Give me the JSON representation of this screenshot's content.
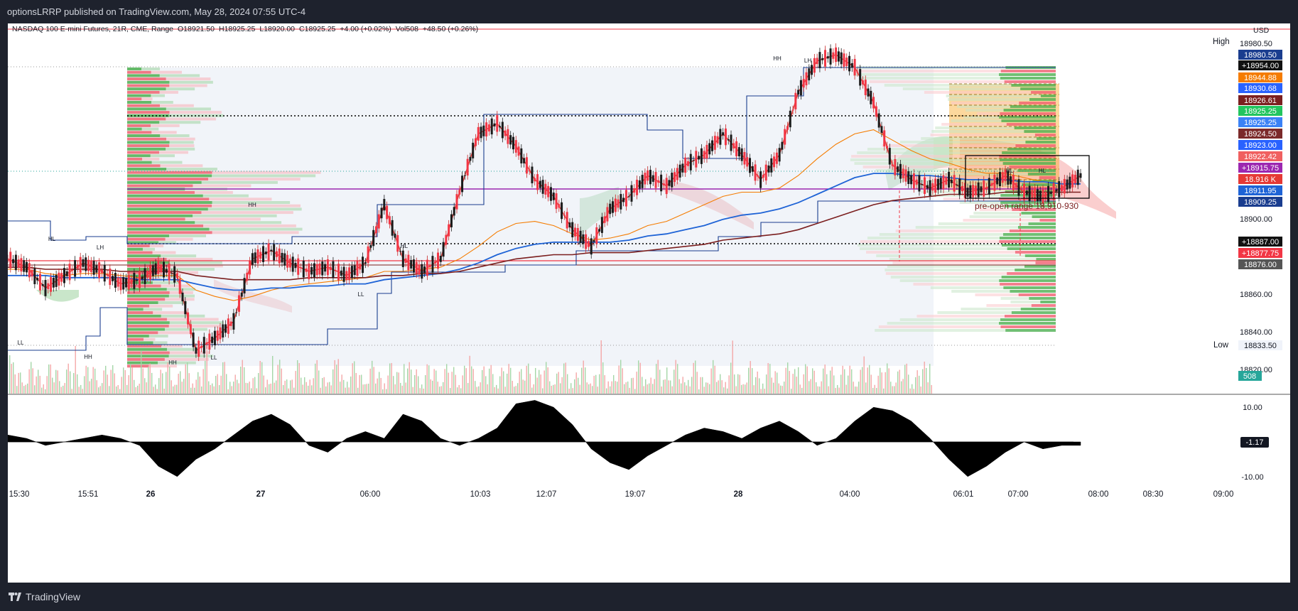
{
  "header": {
    "publish_line": "optionsLRRP published on TradingView.com, May 28, 2024 07:55 UTC-4"
  },
  "footer": {
    "brand": "TradingView"
  },
  "colors": {
    "bull": "#26a69a",
    "bear": "#f23645",
    "candle_bull": "#1b1b1b",
    "candle_bear": "#f23645",
    "vwap_red": "#e53935",
    "ema_blue": "#1e63d6",
    "ema_maroon": "#7b1f1f",
    "orange": "#f57c00",
    "range_box": "#000000"
  },
  "chart_data": [
    {
      "type": "line",
      "symbol": "NASDAQ 100 E-mini Futures, 21R, CME, Range",
      "ohlc": {
        "open": "O18921.50",
        "high": "H18925.25",
        "low": "L18920.00",
        "close": "C18925.25",
        "change": "+4.00 (+0.02%)"
      },
      "volume": {
        "label": "Vol508",
        "change": "+48.50 (+0.26%)"
      },
      "currency": "USD",
      "y_axis_ticks": [
        "18980.50",
        "18900.00",
        "18860.00",
        "18840.00",
        "18820.00"
      ],
      "ylim": [
        18815,
        18993
      ],
      "x_axis_ticks": [
        "15:30",
        "15:51",
        "26",
        "27",
        "06:00",
        "10:03",
        "12:07",
        "19:07",
        "28",
        "04:00",
        "06:01",
        "07:00",
        "08:00",
        "08:30",
        "09:00"
      ],
      "session_high": {
        "label": "High",
        "value": "18980.50"
      },
      "session_low": {
        "label": "Low",
        "value": "18833.50"
      },
      "price_labels": [
        {
          "value": "18980.50",
          "color": "#1a3d8f"
        },
        {
          "value": "+18954.00",
          "color": "#111111"
        },
        {
          "value": "18944.88",
          "color": "#f57c00"
        },
        {
          "value": "18930.68",
          "color": "#2962ff"
        },
        {
          "value": "18926.61",
          "color": "#7b1f1f"
        },
        {
          "value": "18925.25",
          "color": "#22c55e"
        },
        {
          "value": "18925.25",
          "color": "#3b82f6"
        },
        {
          "value": "18924.50",
          "color": "#7b2a2a"
        },
        {
          "value": "18923.00",
          "color": "#2962ff"
        },
        {
          "value": "18922.42",
          "color": "#f06060"
        },
        {
          "value": "+18915.75",
          "color": "#9c27b0"
        },
        {
          "value": "18.916 K",
          "color": "#e53935"
        },
        {
          "value": "18911.95",
          "color": "#1e63d6"
        },
        {
          "value": "18909.25",
          "color": "#1a3d8f"
        },
        {
          "value": "+18887.00",
          "color": "#111111"
        },
        {
          "value": "+18877.75",
          "color": "#f23645"
        },
        {
          "value": "18876.00",
          "color": "#555555"
        },
        {
          "value": "508",
          "color": "#26a69a"
        }
      ],
      "annotations": [
        "pre-open range 18,910-930",
        "HH",
        "LH",
        "HL",
        "LL"
      ],
      "series": [
        {
          "values": [
            18880,
            18876,
            18866,
            18872,
            18878,
            18874,
            18868,
            18870,
            18876,
            18872,
            18836,
            18842,
            18850,
            18880,
            18884,
            18878,
            18874,
            18876,
            18872,
            18878,
            18906,
            18880,
            18874,
            18880,
            18912,
            18940,
            18945,
            18934,
            18918,
            18910,
            18894,
            18886,
            18904,
            18910,
            18920,
            18915,
            18925,
            18930,
            18940,
            18930,
            18918,
            18930,
            18960,
            18975,
            18978,
            18972,
            18955,
            18925,
            18918,
            18914,
            18918,
            18912,
            18914,
            18920,
            18912,
            18910,
            18914,
            18920
          ]
        },
        {
          "values": [
            18875,
            18875,
            18873,
            18872,
            18873,
            18873,
            18872,
            18871,
            18872,
            18872,
            18865,
            18862,
            18860,
            18862,
            18865,
            18867,
            18868,
            18869,
            18870,
            18871,
            18874,
            18874,
            18875,
            18876,
            18880,
            18886,
            18893,
            18897,
            18898,
            18896,
            18892,
            18889,
            18890,
            18892,
            18896,
            18898,
            18902,
            18906,
            18910,
            18912,
            18912,
            18914,
            18920,
            18928,
            18935,
            18940,
            18942,
            18937,
            18932,
            18928,
            18926,
            18923,
            18921,
            18921,
            18919,
            18917,
            18916,
            18916
          ]
        },
        {
          "values": [
            18872,
            18872,
            18872,
            18871,
            18871,
            18871,
            18871,
            18870,
            18870,
            18870,
            18868,
            18866,
            18865,
            18865,
            18866,
            18866,
            18867,
            18867,
            18868,
            18868,
            18870,
            18871,
            18872,
            18873,
            18875,
            18878,
            18882,
            18885,
            18887,
            18888,
            18888,
            18888,
            18888,
            18889,
            18891,
            18892,
            18894,
            18896,
            18899,
            18901,
            18902,
            18904,
            18907,
            18911,
            18915,
            18919,
            18921,
            18921,
            18920,
            18920,
            18919,
            18918,
            18918,
            18918,
            18917,
            18917,
            18916,
            18916
          ]
        },
        {
          "values": [
            18876,
            18876,
            18875,
            18875,
            18875,
            18875,
            18874,
            18874,
            18874,
            18874,
            18872,
            18871,
            18870,
            18870,
            18870,
            18870,
            18871,
            18871,
            18871,
            18871,
            18872,
            18872,
            18873,
            18873,
            18874,
            18876,
            18878,
            18880,
            18881,
            18882,
            18882,
            18883,
            18883,
            18883,
            18884,
            18885,
            18886,
            18887,
            18889,
            18890,
            18891,
            18892,
            18894,
            18897,
            18900,
            18903,
            18906,
            18908,
            18909,
            18910,
            18911,
            18911,
            18911,
            18912,
            18912,
            18912,
            18912,
            18912
          ]
        }
      ],
      "oscillator": {
        "ylim": [
          -12.5,
          12.5
        ],
        "ticks": [
          "10.00",
          "-10.00"
        ],
        "last_value": "-1.17",
        "values": [
          2,
          1,
          -1,
          0,
          1,
          2,
          1,
          -1,
          -7,
          -10,
          -5,
          -2,
          2,
          6,
          8,
          5,
          -1,
          -3,
          1,
          3,
          1,
          8,
          6,
          1,
          -1,
          1,
          4,
          11,
          12,
          10,
          5,
          -2,
          -6,
          -8,
          -4,
          -1,
          2,
          4,
          3,
          1,
          4,
          6,
          3,
          -1,
          1,
          6,
          10,
          9,
          6,
          1,
          -5,
          -10,
          -7,
          -3,
          0,
          -2,
          -1,
          -1
        ]
      }
    }
  ]
}
